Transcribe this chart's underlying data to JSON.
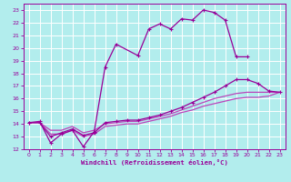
{
  "xlabel": "Windchill (Refroidissement éolien,°C)",
  "bg_color": "#b2eded",
  "grid_color": "#ffffff",
  "line_color": "#990099",
  "line_color2": "#bb44bb",
  "xlim": [
    -0.5,
    23.5
  ],
  "ylim": [
    12,
    23.5
  ],
  "xticks": [
    0,
    1,
    2,
    3,
    4,
    5,
    6,
    7,
    8,
    9,
    10,
    11,
    12,
    13,
    14,
    15,
    16,
    17,
    18,
    19,
    20,
    21,
    22,
    23
  ],
  "yticks": [
    12,
    13,
    14,
    15,
    16,
    17,
    18,
    19,
    20,
    21,
    22,
    23
  ],
  "line1_x": [
    0,
    1,
    2,
    3,
    4,
    5,
    6,
    7,
    8,
    10,
    11,
    12,
    13,
    14,
    15,
    16,
    17,
    18,
    19,
    20
  ],
  "line1_y": [
    14.1,
    14.2,
    12.5,
    13.2,
    13.5,
    12.2,
    13.4,
    18.5,
    20.3,
    19.4,
    21.5,
    21.9,
    21.5,
    22.3,
    22.2,
    23.0,
    22.8,
    22.2,
    19.3,
    19.3
  ],
  "line2_x": [
    0,
    1,
    2,
    3,
    4,
    5,
    6,
    7,
    8,
    9,
    10,
    11,
    12,
    13,
    14,
    15,
    16,
    17,
    18,
    19,
    20,
    21,
    22,
    23
  ],
  "line2_y": [
    14.1,
    14.1,
    13.0,
    13.3,
    13.6,
    13.1,
    13.3,
    14.1,
    14.2,
    14.3,
    14.3,
    14.5,
    14.7,
    15.0,
    15.3,
    15.7,
    16.1,
    16.5,
    17.0,
    17.5,
    17.5,
    17.2,
    16.6,
    16.5
  ],
  "line3_x": [
    0,
    1,
    2,
    3,
    4,
    5,
    6,
    7,
    8,
    9,
    10,
    11,
    12,
    13,
    14,
    15,
    16,
    17,
    18,
    19,
    20,
    21,
    22,
    23
  ],
  "line3_y": [
    14.1,
    14.1,
    13.5,
    13.5,
    13.8,
    13.3,
    13.5,
    14.0,
    14.1,
    14.2,
    14.2,
    14.4,
    14.6,
    14.8,
    15.1,
    15.4,
    15.7,
    16.0,
    16.2,
    16.4,
    16.5,
    16.5,
    16.5,
    16.5
  ],
  "line4_x": [
    0,
    1,
    2,
    3,
    4,
    5,
    6,
    7,
    8,
    9,
    10,
    11,
    12,
    13,
    14,
    15,
    16,
    17,
    18,
    19,
    20,
    21,
    22,
    23
  ],
  "line4_y": [
    14.1,
    14.1,
    13.2,
    13.2,
    13.5,
    13.0,
    13.2,
    13.8,
    13.9,
    14.0,
    14.0,
    14.2,
    14.4,
    14.6,
    14.9,
    15.1,
    15.4,
    15.6,
    15.8,
    16.0,
    16.1,
    16.1,
    16.2,
    16.5
  ]
}
